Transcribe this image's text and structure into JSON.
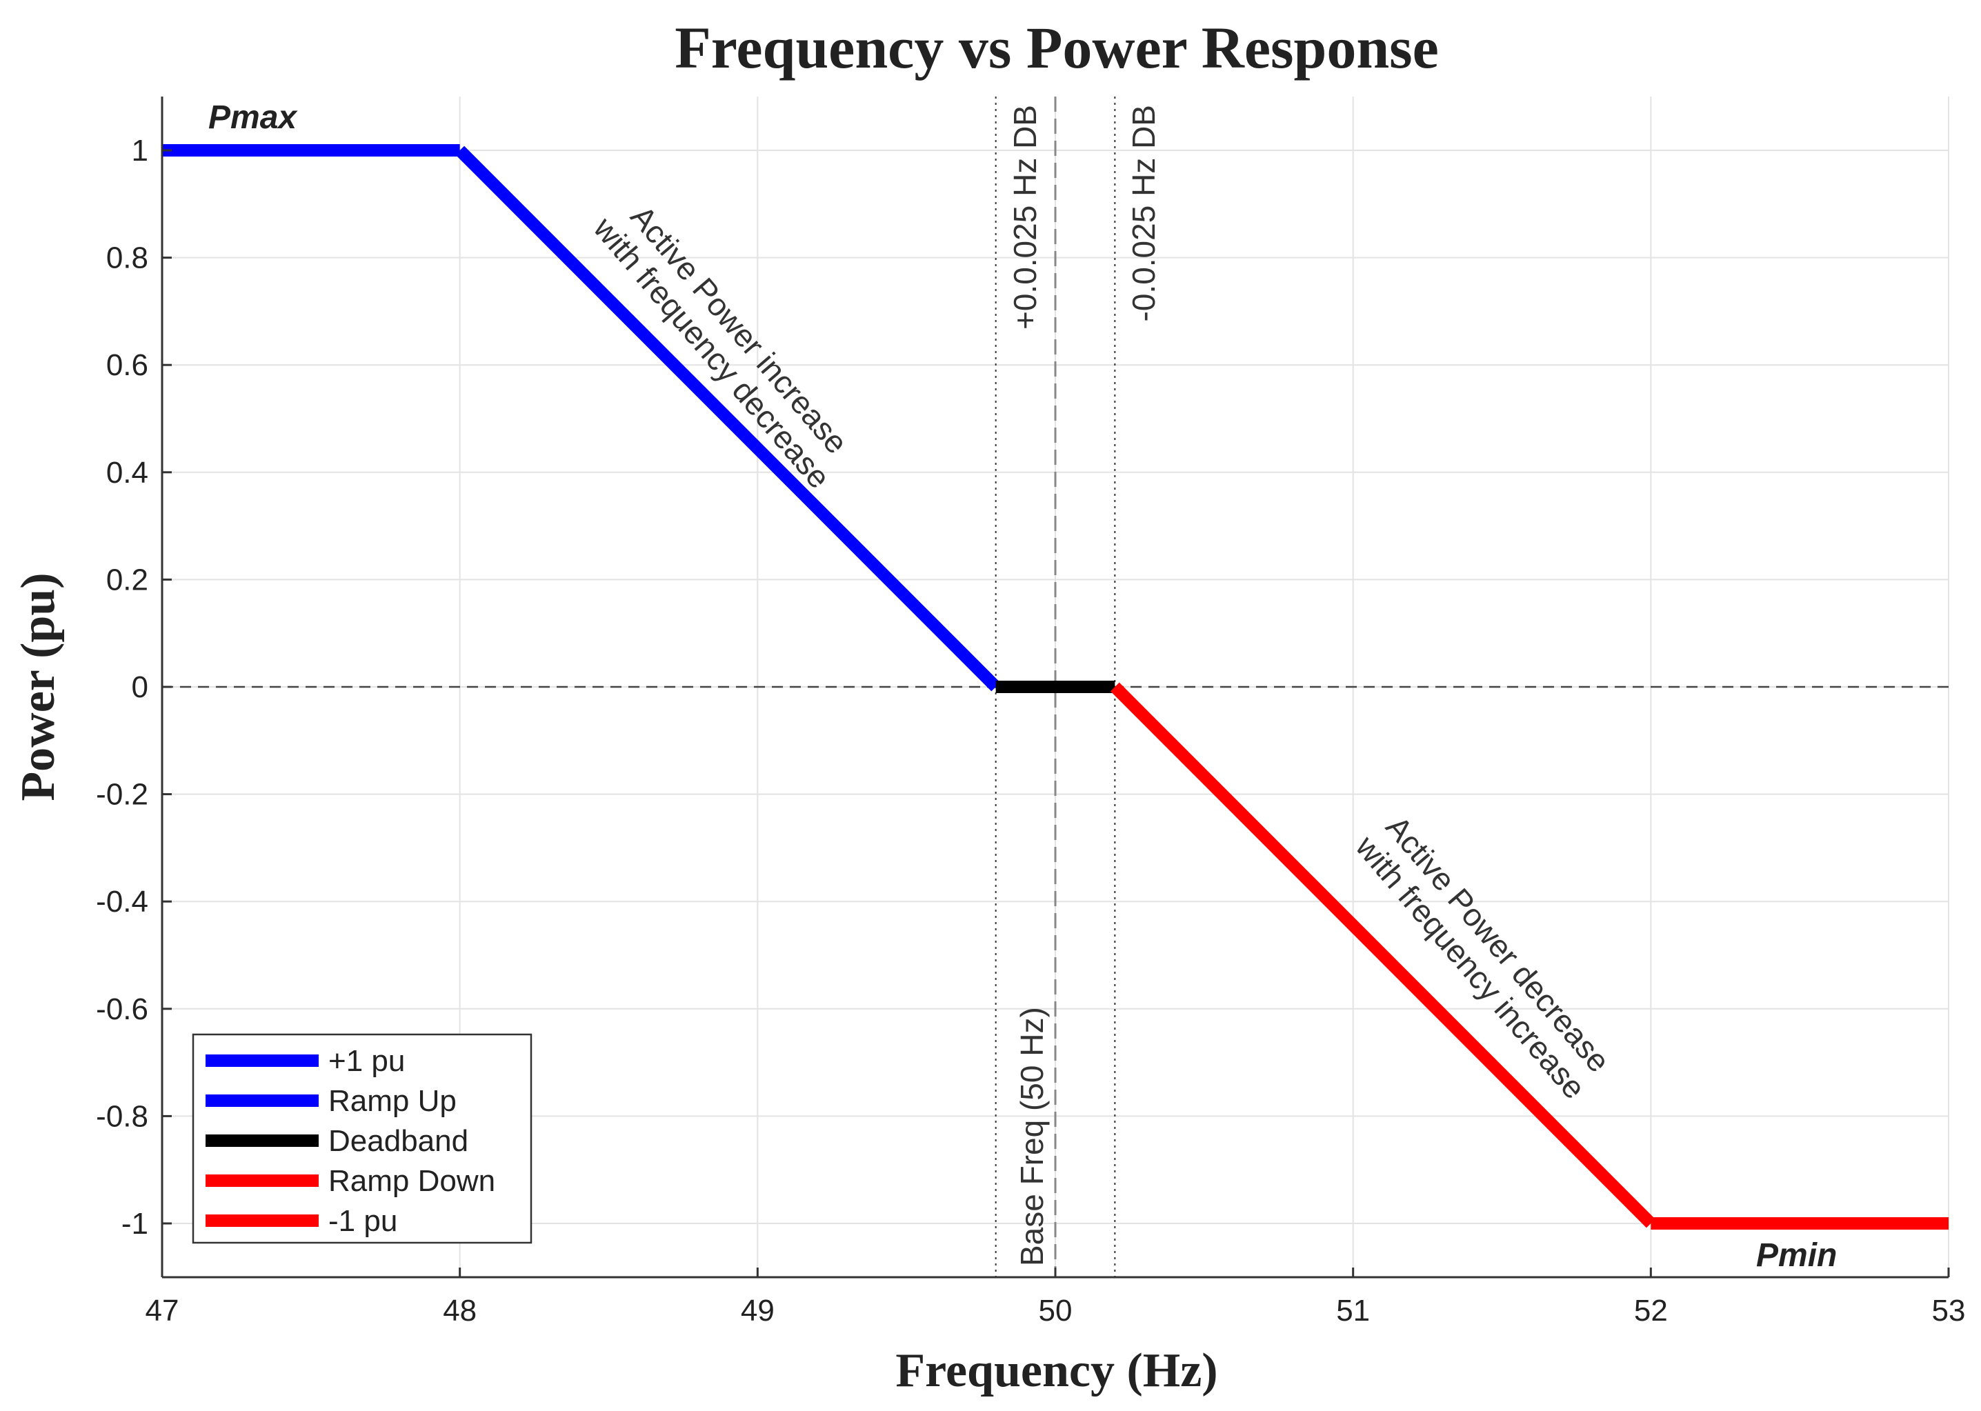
{
  "chart_data": {
    "type": "line",
    "title": "Frequency vs Power Response",
    "xlabel": "Frequency (Hz)",
    "ylabel": "Power (pu)",
    "xlim": [
      47,
      53
    ],
    "ylim": [
      -1.1,
      1.1
    ],
    "xticks": [
      47,
      48,
      49,
      50,
      51,
      52,
      53
    ],
    "yticks": [
      1,
      0.8,
      0.6,
      0.4,
      0.2,
      0,
      -0.2,
      -0.4,
      -0.6,
      -0.8,
      -1
    ],
    "grid": true,
    "legend_location": "bottom-left",
    "series": [
      {
        "name": "+1 pu",
        "color": "#0000ff",
        "x": [
          47,
          48
        ],
        "y": [
          1,
          1
        ]
      },
      {
        "name": "Ramp Up",
        "color": "#0000ff",
        "x": [
          48,
          49.8
        ],
        "y": [
          1,
          0
        ]
      },
      {
        "name": "Deadband",
        "color": "#000000",
        "x": [
          49.8,
          50.2
        ],
        "y": [
          0,
          0
        ]
      },
      {
        "name": "Ramp Down",
        "color": "#ff0000",
        "x": [
          50.2,
          52
        ],
        "y": [
          0,
          -1
        ]
      },
      {
        "name": "-1 pu",
        "color": "#ff0000",
        "x": [
          52,
          53
        ],
        "y": [
          -1,
          -1
        ]
      }
    ],
    "reference_lines": {
      "zero_line_y": 0,
      "base_freq_x": 50,
      "deadband_x": [
        49.8,
        50.2
      ]
    },
    "annotations": {
      "pmax": "Pmax",
      "pmin": "Pmin",
      "db_plus": "+0.0.025 Hz DB",
      "db_minus": "-0.0.025 Hz DB",
      "base_freq": "Base Freq (50 Hz)",
      "ramp_up_line1": "Active Power increase",
      "ramp_up_line2": "with frequency decrease",
      "ramp_down_line1": "Active Power decrease",
      "ramp_down_line2": "with frequency increase"
    }
  }
}
